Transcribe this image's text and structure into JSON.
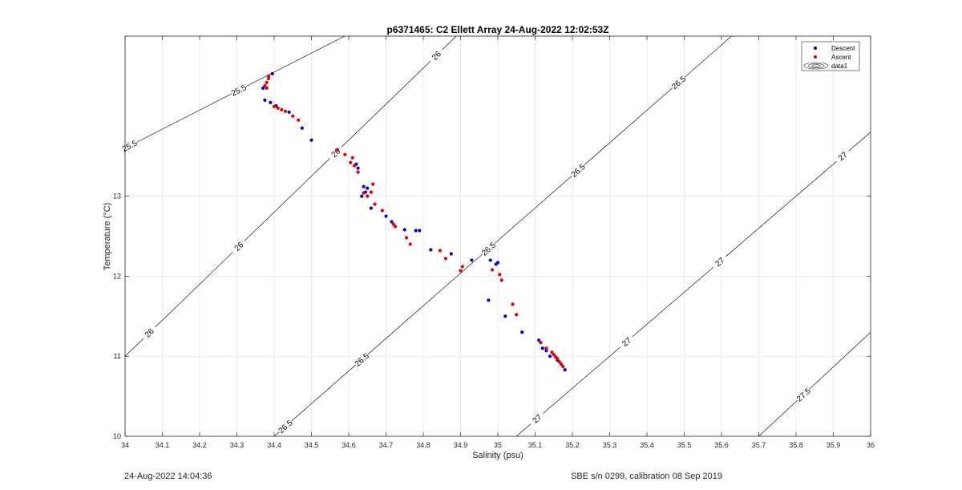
{
  "chart_data": {
    "type": "scatter",
    "title": "p6371465: C2 Ellett Array 24-Aug-2022 12:02:53Z",
    "xlabel": "Salinity (psu)",
    "ylabel": "Temperature (°C)",
    "xlim": [
      34,
      36
    ],
    "ylim": [
      10,
      15
    ],
    "xticks": [
      34,
      34.1,
      34.2,
      34.3,
      34.4,
      34.5,
      34.6,
      34.7,
      34.8,
      34.9,
      35,
      35.1,
      35.2,
      35.3,
      35.4,
      35.5,
      35.6,
      35.7,
      35.8,
      35.9,
      36
    ],
    "xtick_labels": [
      "34",
      "34.1",
      "34.2",
      "34.3",
      "34.4",
      "34.5",
      "34.6",
      "34.7",
      "34.8",
      "34.9",
      "35",
      "35.1",
      "35.2",
      "35.3",
      "35.4",
      "35.5",
      "35.6",
      "35.7",
      "35.8",
      "35.9",
      "36"
    ],
    "yticks": [
      10,
      11,
      12,
      13
    ],
    "ytick_labels": [
      "10",
      "11",
      "12",
      "13"
    ],
    "grid": true,
    "legend_position": "top-right",
    "series": [
      {
        "name": "Descent",
        "color": "#0000cc",
        "points": [
          [
            34.395,
            14.53
          ],
          [
            34.37,
            14.35
          ],
          [
            34.375,
            14.2
          ],
          [
            34.39,
            14.17
          ],
          [
            34.405,
            14.13
          ],
          [
            34.44,
            14.05
          ],
          [
            34.475,
            13.85
          ],
          [
            34.5,
            13.7
          ],
          [
            34.62,
            13.4
          ],
          [
            34.625,
            13.35
          ],
          [
            34.64,
            13.12
          ],
          [
            34.65,
            13.1
          ],
          [
            34.645,
            13.05
          ],
          [
            34.635,
            13.0
          ],
          [
            34.66,
            12.85
          ],
          [
            34.7,
            12.75
          ],
          [
            34.715,
            12.68
          ],
          [
            34.75,
            12.58
          ],
          [
            34.78,
            12.57
          ],
          [
            34.79,
            12.57
          ],
          [
            34.82,
            12.33
          ],
          [
            34.875,
            12.28
          ],
          [
            34.93,
            12.2
          ],
          [
            34.98,
            12.2
          ],
          [
            34.995,
            12.15
          ],
          [
            35.0,
            12.17
          ],
          [
            34.975,
            11.7
          ],
          [
            35.02,
            11.5
          ],
          [
            35.065,
            11.3
          ],
          [
            35.11,
            11.2
          ],
          [
            35.12,
            11.1
          ],
          [
            35.13,
            11.07
          ],
          [
            35.14,
            11.0
          ],
          [
            35.16,
            10.95
          ],
          [
            35.17,
            10.9
          ],
          [
            35.18,
            10.83
          ]
        ]
      },
      {
        "name": "Ascent",
        "color": "#dd0000",
        "points": [
          [
            34.385,
            14.5
          ],
          [
            34.385,
            14.47
          ],
          [
            34.38,
            14.42
          ],
          [
            34.375,
            14.38
          ],
          [
            34.38,
            14.35
          ],
          [
            34.4,
            14.12
          ],
          [
            34.41,
            14.1
          ],
          [
            34.42,
            14.08
          ],
          [
            34.43,
            14.06
          ],
          [
            34.45,
            14.0
          ],
          [
            34.465,
            13.95
          ],
          [
            34.57,
            13.58
          ],
          [
            34.59,
            13.52
          ],
          [
            34.61,
            13.48
          ],
          [
            34.605,
            13.42
          ],
          [
            34.615,
            13.38
          ],
          [
            34.625,
            13.3
          ],
          [
            34.64,
            13.04
          ],
          [
            34.65,
            13.0
          ],
          [
            34.66,
            13.05
          ],
          [
            34.665,
            13.15
          ],
          [
            34.67,
            12.9
          ],
          [
            34.69,
            12.82
          ],
          [
            34.72,
            12.65
          ],
          [
            34.725,
            12.62
          ],
          [
            34.755,
            12.48
          ],
          [
            34.765,
            12.4
          ],
          [
            34.845,
            12.32
          ],
          [
            34.86,
            12.22
          ],
          [
            34.9,
            12.07
          ],
          [
            34.905,
            12.12
          ],
          [
            34.985,
            12.08
          ],
          [
            35.005,
            12.02
          ],
          [
            35.01,
            11.95
          ],
          [
            35.04,
            11.65
          ],
          [
            35.05,
            11.52
          ],
          [
            35.115,
            11.17
          ],
          [
            35.13,
            11.1
          ],
          [
            35.145,
            11.05
          ],
          [
            35.15,
            11.02
          ],
          [
            35.155,
            10.99
          ],
          [
            35.16,
            10.97
          ],
          [
            35.165,
            10.93
          ],
          [
            35.17,
            10.9
          ],
          [
            35.175,
            10.87
          ]
        ]
      }
    ],
    "contour_series_name": "data1",
    "contours": [
      {
        "level": 25.5,
        "labels": [
          "25.5",
          "25.5"
        ]
      },
      {
        "level": 26,
        "labels": [
          "26",
          "26",
          "26",
          "26"
        ]
      },
      {
        "level": 26.5,
        "labels": [
          "26.5",
          "26.5",
          "26.5",
          "26.5",
          "26.5"
        ]
      },
      {
        "level": 27,
        "labels": [
          "27",
          "27",
          "27",
          "27"
        ]
      },
      {
        "level": 27.5,
        "labels": [
          "27.5"
        ]
      }
    ]
  },
  "footer": {
    "left": "24-Aug-2022 14:04:36",
    "right": "SBE s/n 0299, calibration 08 Sep 2019"
  }
}
